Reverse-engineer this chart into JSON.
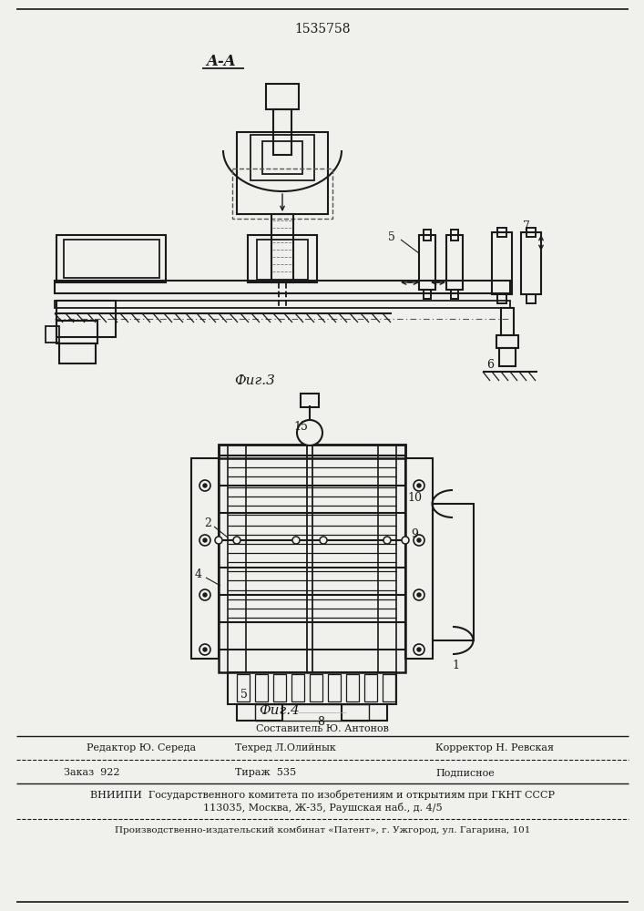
{
  "title_number": "1535758",
  "section_label": "A-A",
  "fig3_label": "Фиг.3",
  "fig4_label": "Фиг.4",
  "footer_sestavitel": "Составитель Ю. Антонов",
  "footer_editor": "Редактор Ю. Середа",
  "footer_tehred": "Техред Л.Олийнык",
  "footer_korrektor": "Корректор Н. Ревская",
  "footer_zak": "Заказ  922",
  "footer_tir": "Тираж  535",
  "footer_pod": "Подписное",
  "footer_vniip": "ВНИИПИ  Государственного комитета по изобретениям и открытиям при ГКНТ СССР",
  "footer_addr": "113035, Москва, Ж-35, Раушская наб., д. 4/5",
  "footer_patent": "Производственно-издательский комбинат «Патент», г. Ужгород, ул. Гагарина, 101",
  "bg_color": "#f0f0ec",
  "line_color": "#1a1a1a"
}
